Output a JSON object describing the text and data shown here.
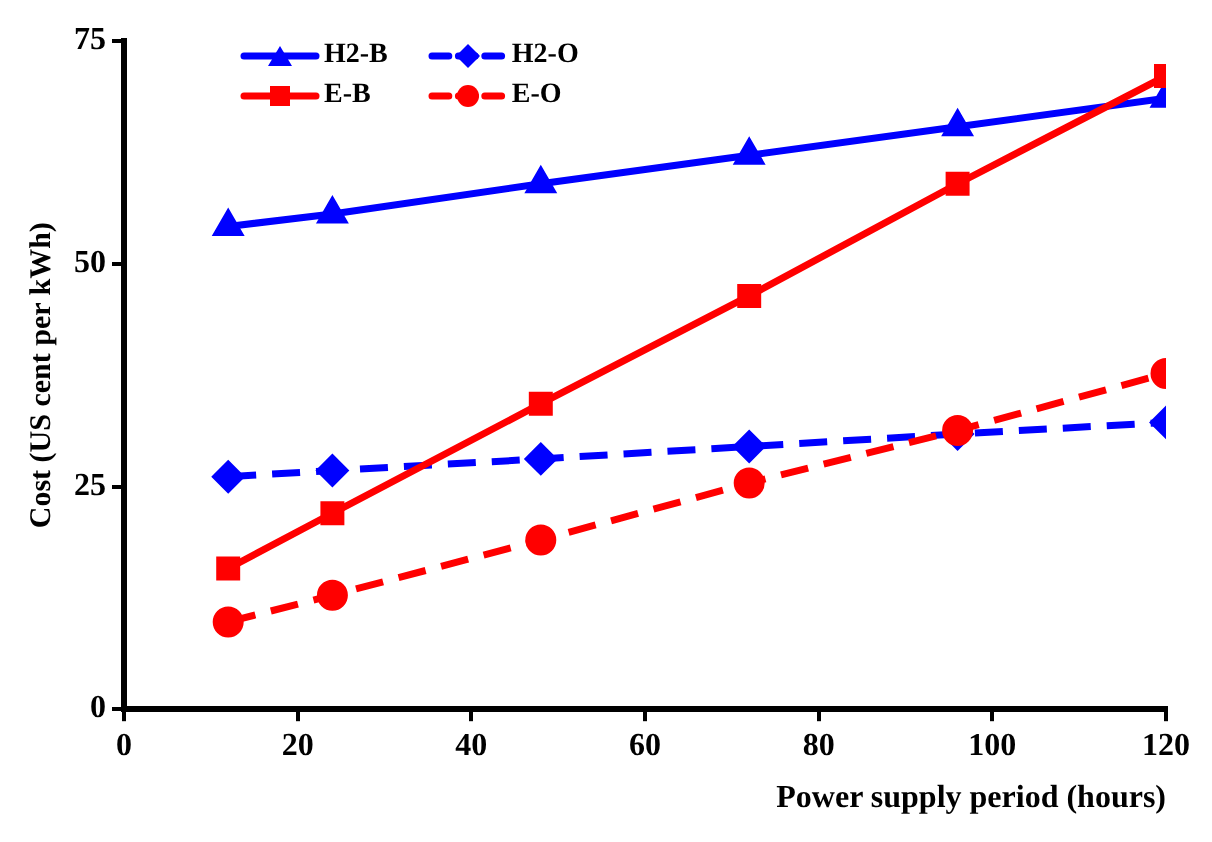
{
  "chart_data": {
    "type": "line",
    "xlabel": "Power supply period (hours)",
    "ylabel": "Cost (US cent per kWh)",
    "xlim": [
      0,
      120
    ],
    "xticks": [
      0,
      20,
      40,
      60,
      80,
      100,
      120
    ],
    "ylim": [
      0,
      75
    ],
    "yticks": [
      0,
      25,
      50,
      75
    ],
    "grid": false,
    "legend": "top left",
    "series": [
      {
        "name": "H2-B",
        "color": "#0000ff",
        "marker": "triangle",
        "line_style": "solid",
        "x": [
          12,
          24,
          48,
          72,
          96,
          120
        ],
        "values": [
          54.2,
          55.6,
          59,
          62.2,
          65.4,
          68.6
        ]
      },
      {
        "name": "H2-O",
        "color": "#0000ff",
        "marker": "diamond",
        "line_style": "dashed",
        "x": [
          12,
          24,
          48,
          72,
          96,
          120
        ],
        "values": [
          26.1,
          26.8,
          28.1,
          29.5,
          30.9,
          32.2
        ]
      },
      {
        "name": "E-B",
        "color": "#ff0000",
        "marker": "square",
        "line_style": "solid",
        "x": [
          12,
          24,
          48,
          72,
          96,
          120
        ],
        "values": [
          15.8,
          22,
          34.3,
          46.4,
          59,
          71.1
        ]
      },
      {
        "name": "E-O",
        "color": "#ff0000",
        "marker": "circle",
        "line_style": "dashed",
        "x": [
          12,
          24,
          48,
          72,
          96,
          120
        ],
        "values": [
          9.8,
          12.8,
          19,
          25.4,
          31.3,
          37.7
        ]
      }
    ]
  }
}
